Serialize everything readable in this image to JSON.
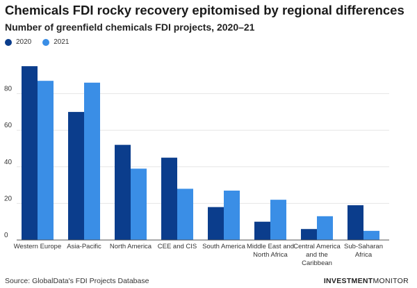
{
  "header": {
    "title": "Chemicals FDI rocky recovery epitomised by regional differences",
    "subtitle": "Number of greenfield chemicals FDI projects, 2020–21"
  },
  "legend": [
    {
      "label": "2020",
      "color": "#0b3d8c"
    },
    {
      "label": "2021",
      "color": "#3a8ee6"
    }
  ],
  "footer": {
    "source": "Source: GlobalData's FDI Projects Database",
    "brand_bold": "INVESTMENT",
    "brand_regular": "MONITOR"
  },
  "chart_data": {
    "type": "bar",
    "categories": [
      [
        "Western Europe"
      ],
      [
        "Asia-Pacific"
      ],
      [
        "North America"
      ],
      [
        "CEE and CIS"
      ],
      [
        "South America"
      ],
      [
        "Middle East and",
        "North Africa"
      ],
      [
        "Central America",
        "and the",
        "Caribbean"
      ],
      [
        "Sub-Saharan",
        "Africa"
      ]
    ],
    "series": [
      {
        "name": "2020",
        "color": "#0b3d8c",
        "values": [
          95,
          70,
          52,
          45,
          18,
          10,
          6,
          19
        ]
      },
      {
        "name": "2021",
        "color": "#3a8ee6",
        "values": [
          87,
          86,
          39,
          28,
          27,
          22,
          13,
          5
        ]
      }
    ],
    "yticks": [
      0,
      20,
      40,
      60,
      80
    ],
    "ylim": [
      0,
      100
    ],
    "grid": true,
    "legend_position": "top-left"
  }
}
